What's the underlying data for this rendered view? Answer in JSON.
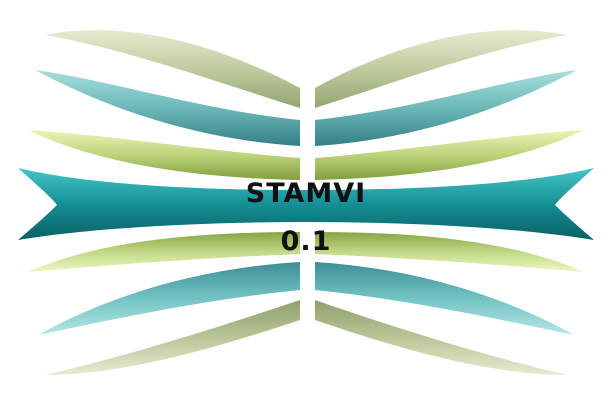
{
  "splash": {
    "app_name": "STAMVI",
    "version": "0.1"
  },
  "logo": {
    "shape": "symmetric wave bands (bow-tie)",
    "colors": {
      "sage_light": "#dfe6c4",
      "sage_dark": "#9fb07c",
      "teal_light": "#9ed8d8",
      "teal_dark": "#3e9a9e",
      "lime_light": "#e4f0a8",
      "lime_dark": "#95b44e",
      "deep_teal_light": "#39c0c4",
      "deep_teal_dark": "#0b6f73",
      "background": "#ffffff",
      "text": "#111111"
    }
  }
}
